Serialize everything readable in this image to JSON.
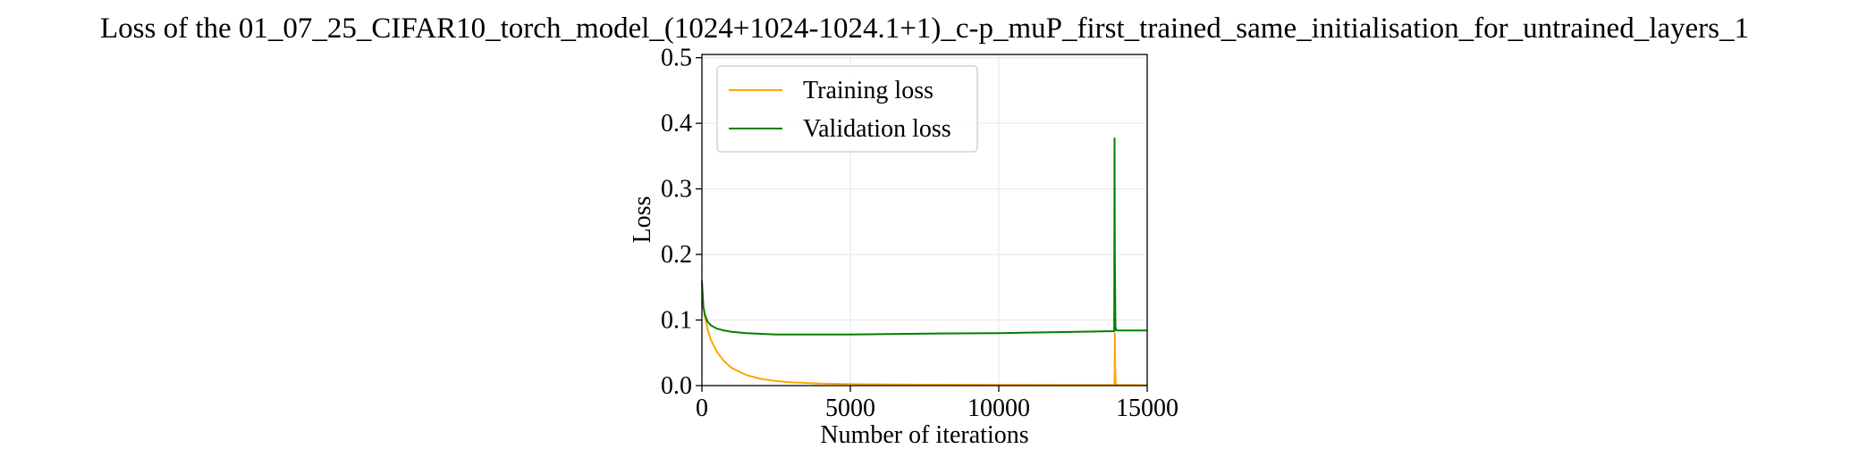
{
  "chart_data": {
    "type": "line",
    "title": "Loss of the 01_07_25_CIFAR10_torch_model_(1024+1024-1024.1+1)_c-p_muP_first_trained_same_initialisation_for_untrained_layers_1",
    "xlabel": "Number of iterations",
    "ylabel": "Loss",
    "xlim": [
      0,
      15000
    ],
    "ylim": [
      0,
      0.505
    ],
    "xticks": [
      0,
      5000,
      10000,
      15000
    ],
    "xtick_labels": [
      "0",
      "5000",
      "10000",
      "15000"
    ],
    "yticks": [
      0.0,
      0.1,
      0.2,
      0.3,
      0.4,
      0.5
    ],
    "ytick_labels": [
      "0.0",
      "0.1",
      "0.2",
      "0.3",
      "0.4",
      "0.5"
    ],
    "grid": true,
    "legend_position": "upper-left",
    "series": [
      {
        "name": "Training loss",
        "color": "#ffa500",
        "x": [
          0,
          50,
          100,
          200,
          300,
          500,
          750,
          1000,
          1500,
          2000,
          2500,
          3000,
          4000,
          5000,
          6000,
          8000,
          10000,
          12000,
          13900,
          13910,
          13920,
          13940,
          14000,
          15000
        ],
        "y": [
          0.155,
          0.12,
          0.105,
          0.085,
          0.07,
          0.052,
          0.037,
          0.027,
          0.016,
          0.01,
          0.007,
          0.005,
          0.003,
          0.0022,
          0.0018,
          0.0014,
          0.0011,
          0.0009,
          0.0008,
          0.08,
          0.03,
          0.002,
          0.0009,
          0.0007
        ]
      },
      {
        "name": "Validation loss",
        "color": "#008000",
        "x": [
          0,
          50,
          100,
          200,
          300,
          500,
          750,
          1000,
          1500,
          2000,
          2500,
          3000,
          4000,
          5000,
          6000,
          8000,
          10000,
          12000,
          13890,
          13900,
          13910,
          13930,
          13960,
          14000,
          15000
        ],
        "y": [
          0.16,
          0.12,
          0.108,
          0.097,
          0.092,
          0.087,
          0.084,
          0.082,
          0.08,
          0.079,
          0.078,
          0.078,
          0.078,
          0.078,
          0.0785,
          0.0795,
          0.08,
          0.0815,
          0.083,
          0.377,
          0.2,
          0.09,
          0.084,
          0.084,
          0.084
        ]
      }
    ]
  }
}
